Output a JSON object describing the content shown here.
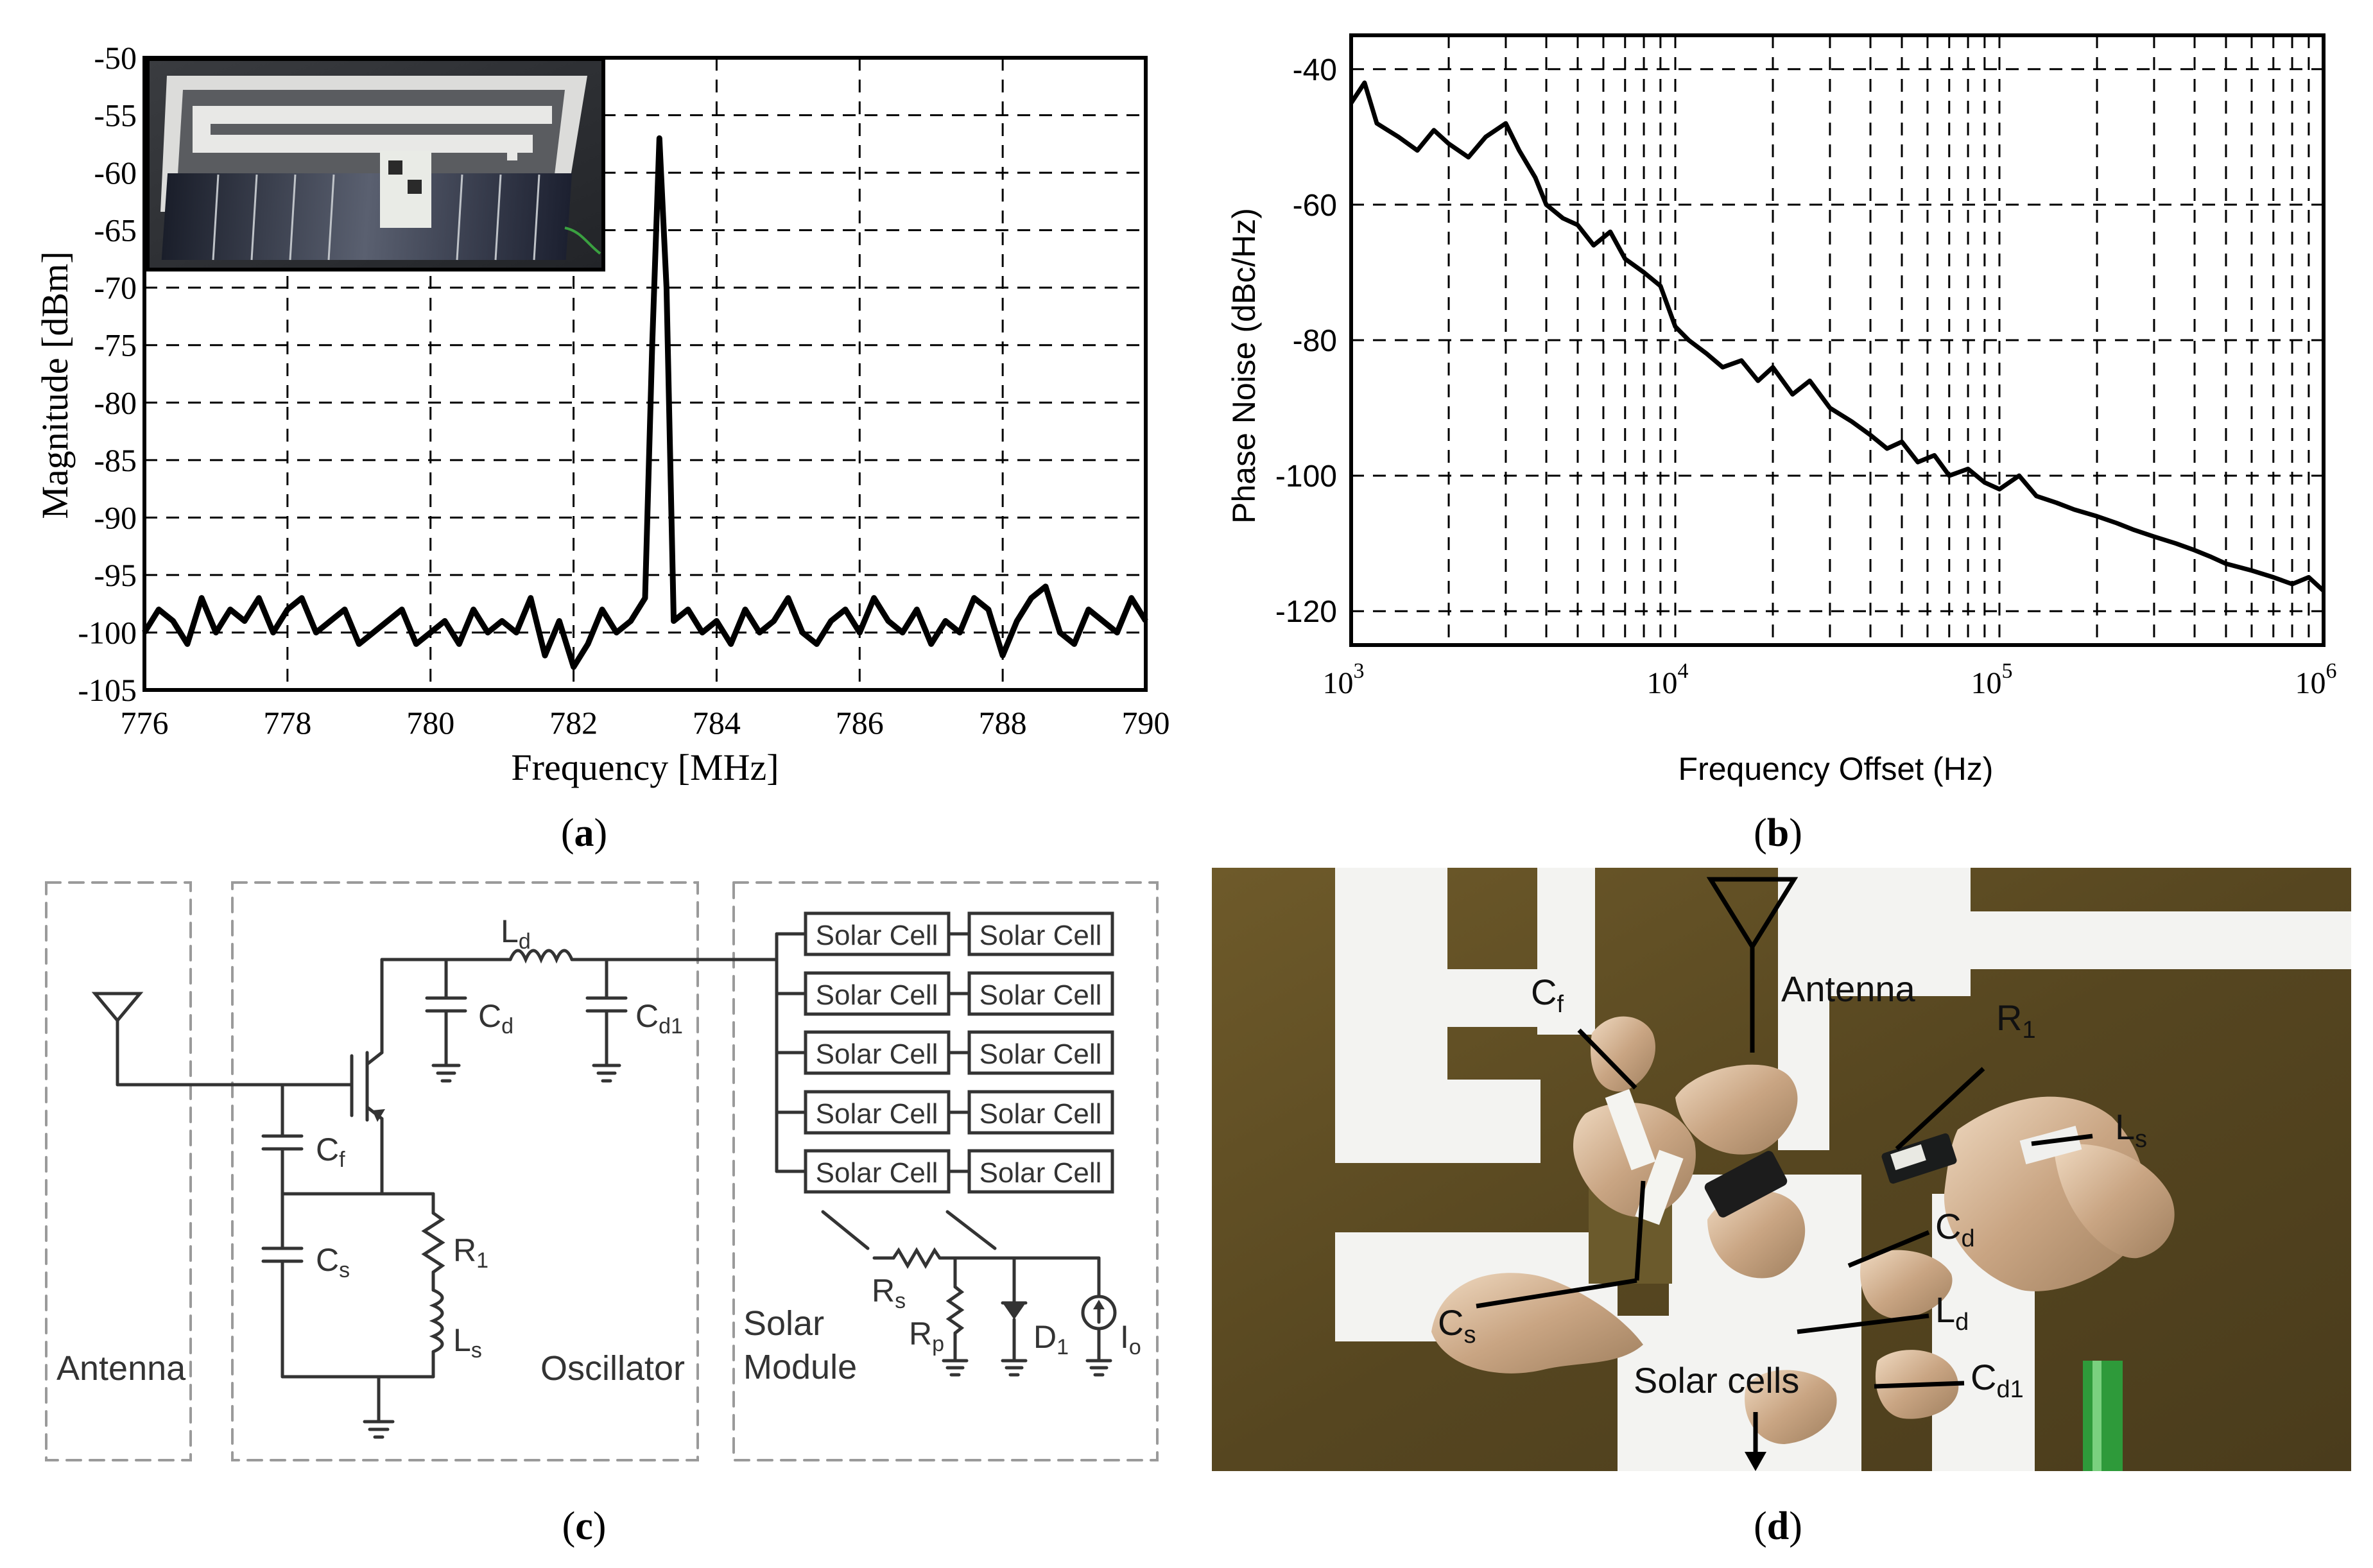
{
  "chart_data": [
    {
      "panel": "(a)",
      "type": "line",
      "xlabel": "Frequency [MHz]",
      "ylabel": "Magnitude [dBm]",
      "xlim": [
        776,
        790
      ],
      "ylim": [
        -105,
        -50
      ],
      "x_ticks": [
        776,
        778,
        780,
        782,
        784,
        786,
        788,
        790
      ],
      "y_ticks": [
        -50,
        -55,
        -60,
        -65,
        -70,
        -75,
        -80,
        -85,
        -90,
        -95,
        -100,
        -105
      ],
      "grid": true,
      "inset": "photo of antenna with solar cell strip",
      "series": [
        {
          "x": [
            776.0,
            776.2,
            776.4,
            776.6,
            776.8,
            777.0,
            777.2,
            777.4,
            777.6,
            777.8,
            778.0,
            778.2,
            778.4,
            778.6,
            778.8,
            779.0,
            779.2,
            779.4,
            779.6,
            779.8,
            780.0,
            780.2,
            780.4,
            780.6,
            780.8,
            781.0,
            781.2,
            781.4,
            781.6,
            781.8,
            782.0,
            782.2,
            782.4,
            782.6,
            782.8,
            783.0,
            783.1,
            783.2,
            783.3,
            783.4,
            783.6,
            783.8,
            784.0,
            784.2,
            784.4,
            784.6,
            784.8,
            785.0,
            785.2,
            785.4,
            785.6,
            785.8,
            786.0,
            786.2,
            786.4,
            786.6,
            786.8,
            787.0,
            787.2,
            787.4,
            787.6,
            787.8,
            788.0,
            788.2,
            788.4,
            788.6,
            788.8,
            789.0,
            789.2,
            789.4,
            789.6,
            789.8,
            790.0
          ],
          "y": [
            -100,
            -98,
            -99,
            -101,
            -97,
            -100,
            -98,
            -99,
            -97,
            -100,
            -98,
            -97,
            -100,
            -99,
            -98,
            -101,
            -100,
            -99,
            -98,
            -101,
            -100,
            -99,
            -101,
            -98,
            -100,
            -99,
            -100,
            -97,
            -102,
            -99,
            -103,
            -101,
            -98,
            -100,
            -99,
            -97,
            -75,
            -57,
            -70,
            -99,
            -98,
            -100,
            -99,
            -101,
            -98,
            -100,
            -99,
            -97,
            -100,
            -101,
            -99,
            -98,
            -100,
            -97,
            -99,
            -100,
            -98,
            -101,
            -99,
            -100,
            -97,
            -98,
            -102,
            -99,
            -97,
            -96,
            -100,
            -101,
            -98,
            -99,
            -100,
            -97,
            -99
          ]
        }
      ]
    },
    {
      "panel": "(b)",
      "type": "line",
      "xlabel": "Frequency Offset (Hz)",
      "ylabel": "Phase Noise (dBc/Hz)",
      "x_scale": "log",
      "xlim": [
        1000,
        1000000
      ],
      "ylim": [
        -125,
        -35
      ],
      "x_ticks": [
        {
          "base": "10",
          "exp": "3"
        },
        {
          "base": "10",
          "exp": "4"
        },
        {
          "base": "10",
          "exp": "5"
        },
        {
          "base": "10",
          "exp": "6"
        }
      ],
      "y_ticks": [
        -40,
        -60,
        -80,
        -100,
        -120
      ],
      "grid": true,
      "series": [
        {
          "x": [
            1000,
            1100,
            1200,
            1400,
            1600,
            1800,
            2000,
            2300,
            2600,
            3000,
            3300,
            3700,
            4000,
            4500,
            5000,
            5600,
            6300,
            7000,
            8000,
            9000,
            10000,
            11000,
            12500,
            14000,
            16000,
            18000,
            20000,
            23000,
            26000,
            30000,
            35000,
            40000,
            45000,
            50000,
            56000,
            63000,
            70000,
            80000,
            90000,
            100000,
            115000,
            130000,
            150000,
            170000,
            200000,
            230000,
            260000,
            300000,
            350000,
            400000,
            450000,
            500000,
            600000,
            700000,
            800000,
            900000,
            1000000
          ],
          "y": [
            -45,
            -42,
            -48,
            -50,
            -52,
            -49,
            -51,
            -53,
            -50,
            -48,
            -52,
            -56,
            -60,
            -62,
            -63,
            -66,
            -64,
            -68,
            -70,
            -72,
            -78,
            -80,
            -82,
            -84,
            -83,
            -86,
            -84,
            -88,
            -86,
            -90,
            -92,
            -94,
            -96,
            -95,
            -98,
            -97,
            -100,
            -99,
            -101,
            -102,
            -100,
            -103,
            -104,
            -105,
            -106,
            -107,
            -108,
            -109,
            -110,
            -111,
            -112,
            -113,
            -114,
            -115,
            -116,
            -115,
            -117
          ]
        }
      ]
    }
  ],
  "panels": {
    "a": {
      "label_open": "(",
      "label_letter": "a",
      "label_close": ")"
    },
    "b": {
      "label_open": "(",
      "label_letter": "b",
      "label_close": ")"
    },
    "c": {
      "label_open": "(",
      "label_letter": "c",
      "label_close": ")"
    },
    "d": {
      "label_open": "(",
      "label_letter": "d",
      "label_close": ")"
    }
  },
  "circuit": {
    "block_antenna": "Antenna",
    "block_oscillator": "Oscillator",
    "block_solar_line1": "Solar",
    "block_solar_line2": "Module",
    "solar_cell": "Solar Cell",
    "Cf": {
      "main": "C",
      "sub": "f"
    },
    "Cs": {
      "main": "C",
      "sub": "s"
    },
    "Cd": {
      "main": "C",
      "sub": "d"
    },
    "Cd1": {
      "main": "C",
      "sub": "d1"
    },
    "Ld": {
      "main": "L",
      "sub": "d"
    },
    "Ls": {
      "main": "L",
      "sub": "s"
    },
    "R1": {
      "main": "R",
      "sub": "1"
    },
    "Rs": {
      "main": "R",
      "sub": "s"
    },
    "Rp": {
      "main": "R",
      "sub": "p"
    },
    "D1": {
      "main": "D",
      "sub": "1"
    },
    "Io": {
      "main": "I",
      "sub": "o"
    }
  },
  "photo": {
    "antenna": "Antenna",
    "solar_cells": "Solar cells",
    "Cf": {
      "main": "C",
      "sub": "f"
    },
    "R1": {
      "main": "R",
      "sub": "1"
    },
    "Ls": {
      "main": "L",
      "sub": "s"
    },
    "Cd": {
      "main": "C",
      "sub": "d"
    },
    "Cs": {
      "main": "C",
      "sub": "s"
    },
    "Ld": {
      "main": "L",
      "sub": "d"
    },
    "Cd1": {
      "main": "C",
      "sub": "d1"
    }
  },
  "colors": {
    "line": "#000000",
    "grid": "#000000",
    "dashed_box": "#9a9a9a",
    "photo_bg": "#5e4d22",
    "pad_white": "#f3f3f1",
    "solder": "#d2b496",
    "wire_green": "#2e9a3a"
  }
}
